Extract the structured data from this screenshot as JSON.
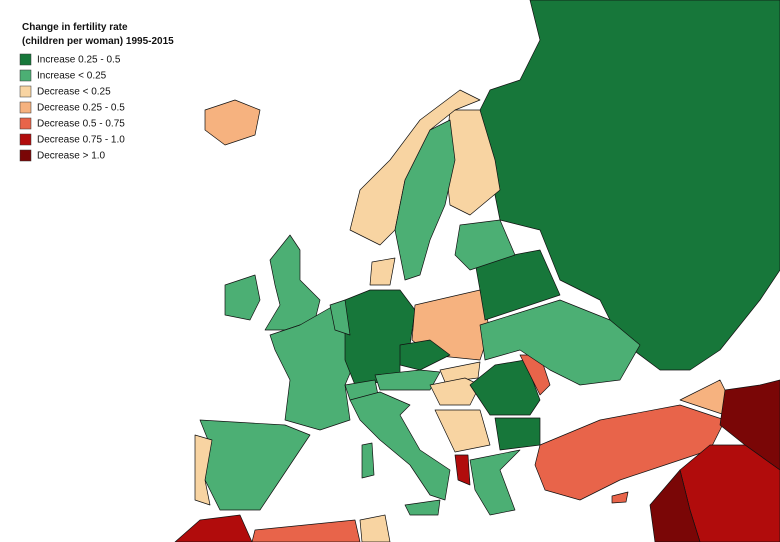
{
  "legend": {
    "title": [
      "Change in fertility rate",
      "(children per woman) 1995-2015"
    ],
    "items": [
      {
        "label": "Increase 0.25 - 0.5",
        "color": "#17773a"
      },
      {
        "label": "Increase < 0.25",
        "color": "#4caf74"
      },
      {
        "label": "Decrease < 0.25",
        "color": "#f8d4a2"
      },
      {
        "label": "Decrease 0.25 - 0.5",
        "color": "#f6b27f"
      },
      {
        "label": "Decrease 0.5 - 0.75",
        "color": "#e8644a"
      },
      {
        "label": "Decrease 0.75 - 1.0",
        "color": "#b10c0c"
      },
      {
        "label": "Decrease > 1.0",
        "color": "#7a0606"
      }
    ]
  }
}
